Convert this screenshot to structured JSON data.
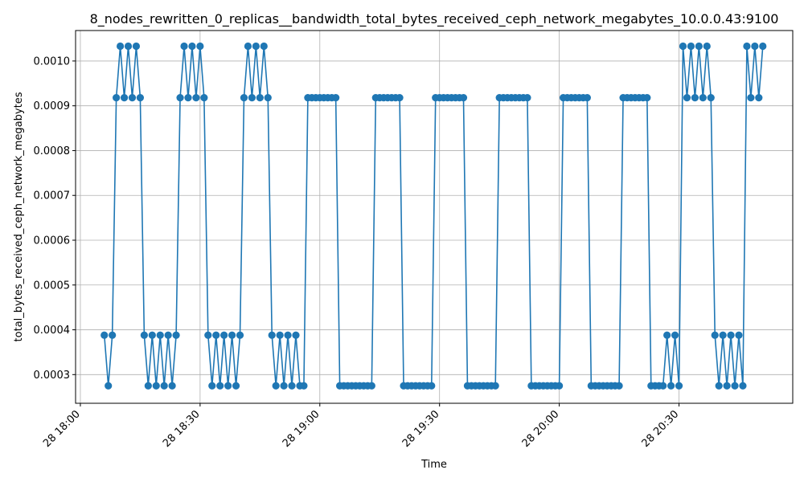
{
  "chart_data": {
    "type": "line",
    "title": "8_nodes_rewritten_0_replicas__bandwidth_total_bytes_received_ceph_network_megabytes_10.0.0.43:9100",
    "xlabel": "Time",
    "ylabel": "total_bytes_received_ceph_network_megabytes",
    "x_tick_labels": [
      "28 18:00",
      "28 18:30",
      "28 19:00",
      "28 19:30",
      "28 20:00",
      "28 20:30"
    ],
    "y_tick_labels": [
      "0.0003",
      "0.0004",
      "0.0005",
      "0.0006",
      "0.0007",
      "0.0008",
      "0.0009",
      "0.0010"
    ],
    "y_ticks": [
      0.0003,
      0.0004,
      0.0005,
      0.0006,
      0.0007,
      0.0008,
      0.0009,
      0.001
    ],
    "x_range_minutes": [
      -1.2,
      178.5
    ],
    "ylim": [
      0.000236,
      0.001068
    ],
    "grid": true,
    "line_color": "#1f77b4",
    "x_start_minute": 6,
    "step_minutes": 1,
    "series": [
      {
        "values": [
          0.000388,
          0.000275,
          0.000388,
          0.000918,
          0.001033,
          0.000918,
          0.001033,
          0.000918,
          0.001033,
          0.000918,
          0.000388,
          0.000275,
          0.000388,
          0.000275,
          0.000388,
          0.000275,
          0.000388,
          0.000275,
          0.000388,
          0.000918,
          0.001033,
          0.000918,
          0.001033,
          0.000918,
          0.001033,
          0.000918,
          0.000388,
          0.000275,
          0.000388,
          0.000275,
          0.000388,
          0.000275,
          0.000388,
          0.000275,
          0.000388,
          0.000918,
          0.001033,
          0.000918,
          0.001033,
          0.000918,
          0.001033,
          0.000918,
          0.000388,
          0.000275,
          0.000388,
          0.000275,
          0.000388,
          0.000275,
          0.000388,
          0.000275,
          0.000275,
          0.000918,
          0.000918,
          0.000918,
          0.000918,
          0.000918,
          0.000918,
          0.000918,
          0.000918,
          0.000275,
          0.000275,
          0.000275,
          0.000275,
          0.000275,
          0.000275,
          0.000275,
          0.000275,
          0.000275,
          0.000918,
          0.000918,
          0.000918,
          0.000918,
          0.000918,
          0.000918,
          0.000918,
          0.000275,
          0.000275,
          0.000275,
          0.000275,
          0.000275,
          0.000275,
          0.000275,
          0.000275,
          0.000918,
          0.000918,
          0.000918,
          0.000918,
          0.000918,
          0.000918,
          0.000918,
          0.000918,
          0.000275,
          0.000275,
          0.000275,
          0.000275,
          0.000275,
          0.000275,
          0.000275,
          0.000275,
          0.000918,
          0.000918,
          0.000918,
          0.000918,
          0.000918,
          0.000918,
          0.000918,
          0.000918,
          0.000275,
          0.000275,
          0.000275,
          0.000275,
          0.000275,
          0.000275,
          0.000275,
          0.000275,
          0.000918,
          0.000918,
          0.000918,
          0.000918,
          0.000918,
          0.000918,
          0.000918,
          0.000275,
          0.000275,
          0.000275,
          0.000275,
          0.000275,
          0.000275,
          0.000275,
          0.000275,
          0.000918,
          0.000918,
          0.000918,
          0.000918,
          0.000918,
          0.000918,
          0.000918,
          0.000275,
          0.000275,
          0.000275,
          0.000275,
          0.000388,
          0.000275,
          0.000388,
          0.000275,
          0.001033,
          0.000918,
          0.001033,
          0.000918,
          0.001033,
          0.000918,
          0.001033,
          0.000918,
          0.000388,
          0.000275,
          0.000388,
          0.000275,
          0.000388,
          0.000275,
          0.000388,
          0.000275,
          0.001033,
          0.000918,
          0.001033,
          0.000918,
          0.001033
        ]
      }
    ]
  }
}
